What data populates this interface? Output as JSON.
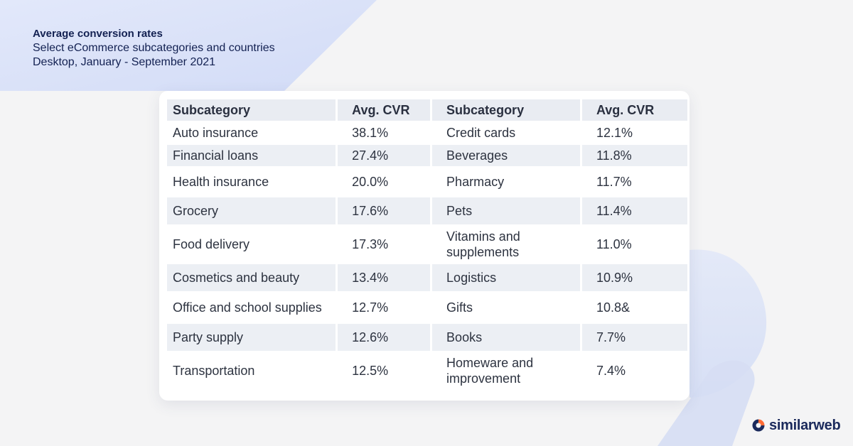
{
  "header": {
    "title": "Average conversion rates",
    "subtitle": "Select eCommerce subcategories and countries",
    "period": "Desktop, January - September 2021"
  },
  "table": {
    "headers": [
      "Subcategory",
      "Avg. CVR",
      "Subcategory",
      "Avg. CVR"
    ],
    "rows": [
      {
        "left_name": "Auto insurance",
        "left_cvr": "38.1%",
        "right_name": "Credit cards",
        "right_cvr": "12.1%"
      },
      {
        "left_name": "Financial loans",
        "left_cvr": "27.4%",
        "right_name": "Beverages",
        "right_cvr": "11.8%"
      },
      {
        "left_name": "Health insurance",
        "left_cvr": "20.0%",
        "right_name": "Pharmacy",
        "right_cvr": "11.7%"
      },
      {
        "left_name": "Grocery",
        "left_cvr": "17.6%",
        "right_name": "Pets",
        "right_cvr": "11.4%"
      },
      {
        "left_name": "Food delivery",
        "left_cvr": "17.3%",
        "right_name": "Vitamins and supplements",
        "right_cvr": "11.0%"
      },
      {
        "left_name": "Cosmetics and beauty",
        "left_cvr": "13.4%",
        "right_name": "Logistics",
        "right_cvr": "10.9%"
      },
      {
        "left_name": "Office and school supplies",
        "left_cvr": "12.7%",
        "right_name": "Gifts",
        "right_cvr": "10.8&"
      },
      {
        "left_name": "Party supply",
        "left_cvr": "12.6%",
        "right_name": "Books",
        "right_cvr": "7.7%"
      },
      {
        "left_name": "Transportation",
        "left_cvr": "12.5%",
        "right_name": "Homeware and improvement",
        "right_cvr": "7.4%"
      }
    ]
  },
  "brand": {
    "name": "similarweb",
    "logo_icon": "similarweb-logo-icon",
    "accent": "#ff6b35",
    "navy": "#1b2a5c"
  },
  "chart_data": {
    "type": "table",
    "title": "Average conversion rates",
    "subtitle": "Select eCommerce subcategories and countries",
    "columns": [
      "Subcategory",
      "Avg. CVR"
    ],
    "rows": [
      [
        "Auto insurance",
        "38.1%"
      ],
      [
        "Financial loans",
        "27.4%"
      ],
      [
        "Health insurance",
        "20.0%"
      ],
      [
        "Grocery",
        "17.6%"
      ],
      [
        "Food delivery",
        "17.3%"
      ],
      [
        "Cosmetics and beauty",
        "13.4%"
      ],
      [
        "Office and school supplies",
        "12.7%"
      ],
      [
        "Party supply",
        "12.6%"
      ],
      [
        "Transportation",
        "12.5%"
      ],
      [
        "Credit cards",
        "12.1%"
      ],
      [
        "Beverages",
        "11.8%"
      ],
      [
        "Pharmacy",
        "11.7%"
      ],
      [
        "Pets",
        "11.4%"
      ],
      [
        "Vitamins and supplements",
        "11.0%"
      ],
      [
        "Logistics",
        "10.9%"
      ],
      [
        "Gifts",
        "10.8&"
      ],
      [
        "Books",
        "7.7%"
      ],
      [
        "Homeware and improvement",
        "7.4%"
      ]
    ]
  }
}
